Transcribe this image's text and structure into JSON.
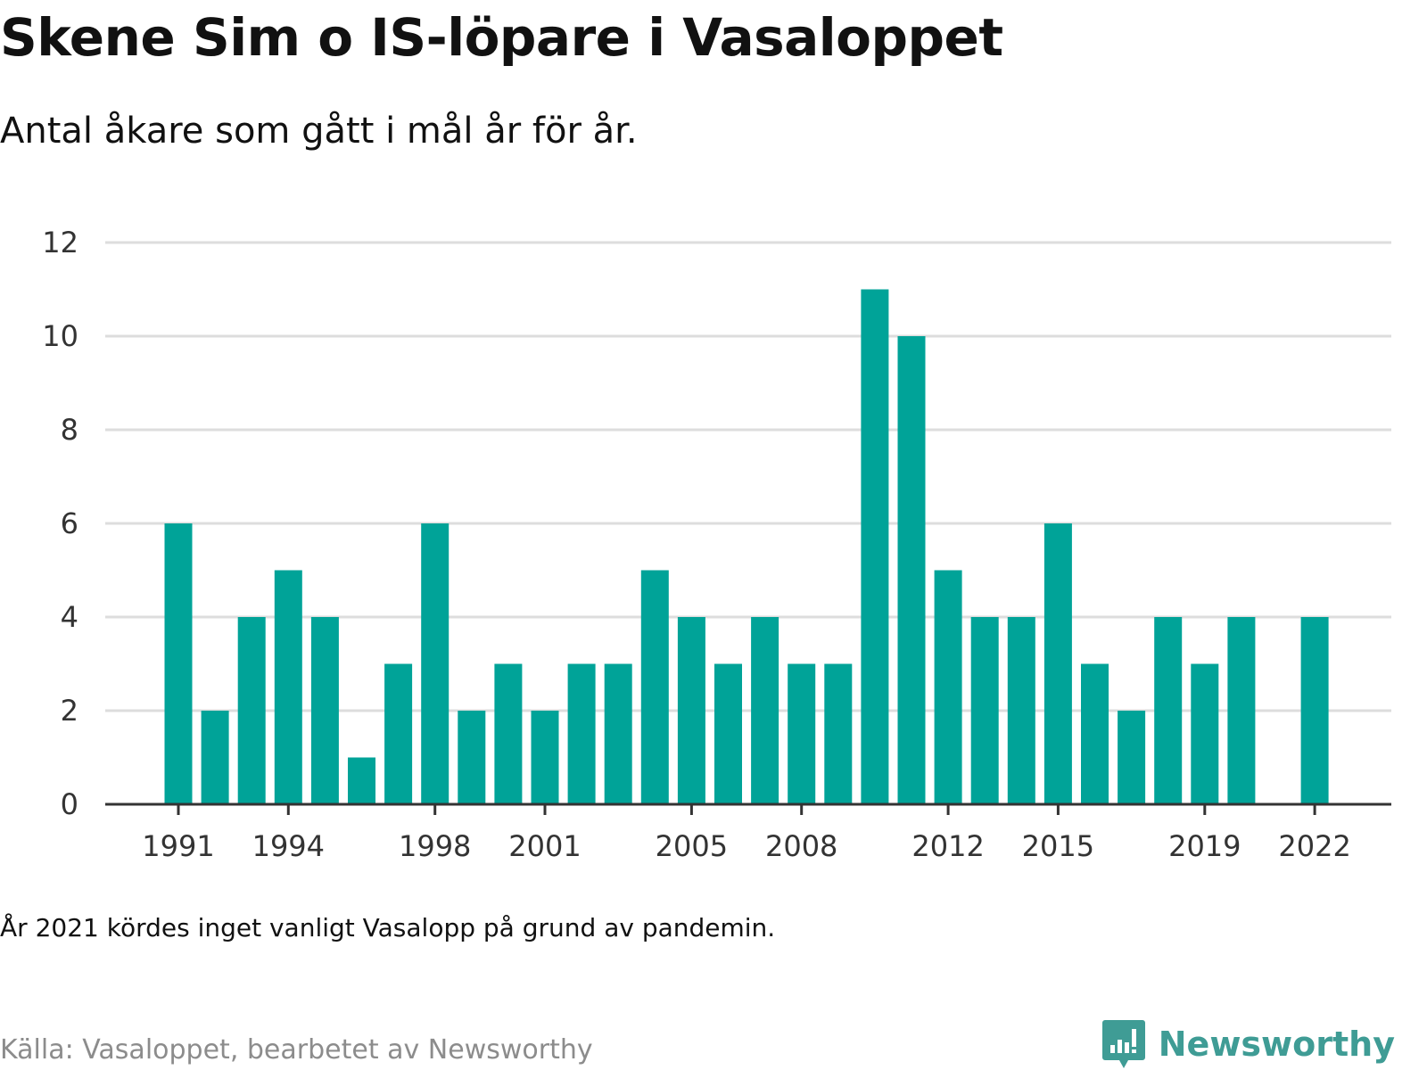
{
  "colors": {
    "bar": "#00a398",
    "grid": "#dddddd",
    "axis": "#333333",
    "brand": "#3f9c95"
  },
  "chart_data": {
    "type": "bar",
    "title": "Skene Sim o IS-löpare i Vasaloppet",
    "subtitle": "Antal åkare som gått i mål år för år.",
    "years": [
      1991,
      1992,
      1993,
      1994,
      1995,
      1996,
      1997,
      1998,
      1999,
      2000,
      2001,
      2002,
      2003,
      2004,
      2005,
      2006,
      2007,
      2008,
      2009,
      2010,
      2011,
      2012,
      2013,
      2014,
      2015,
      2016,
      2017,
      2018,
      2019,
      2020,
      2021,
      2022
    ],
    "values": [
      6,
      2,
      4,
      5,
      4,
      1,
      3,
      6,
      2,
      3,
      2,
      3,
      3,
      5,
      4,
      3,
      4,
      3,
      3,
      11,
      10,
      5,
      4,
      4,
      6,
      3,
      2,
      4,
      3,
      4,
      null,
      4
    ],
    "x_tick_labels": [
      "1991",
      "1994",
      "1998",
      "2001",
      "2005",
      "2008",
      "2012",
      "2015",
      "2019",
      "2022"
    ],
    "y_ticks": [
      0,
      2,
      4,
      6,
      8,
      10,
      12
    ],
    "ylim": [
      0,
      12
    ],
    "grid": true,
    "xlabel": "",
    "ylabel": ""
  },
  "note": "År 2021 kördes inget vanligt Vasalopp på grund av pandemin.",
  "source": "Källa: Vasaloppet, bearbetet av Newsworthy",
  "brand": {
    "name": "Newsworthy",
    "icon": "newsworthy-logo-icon"
  }
}
